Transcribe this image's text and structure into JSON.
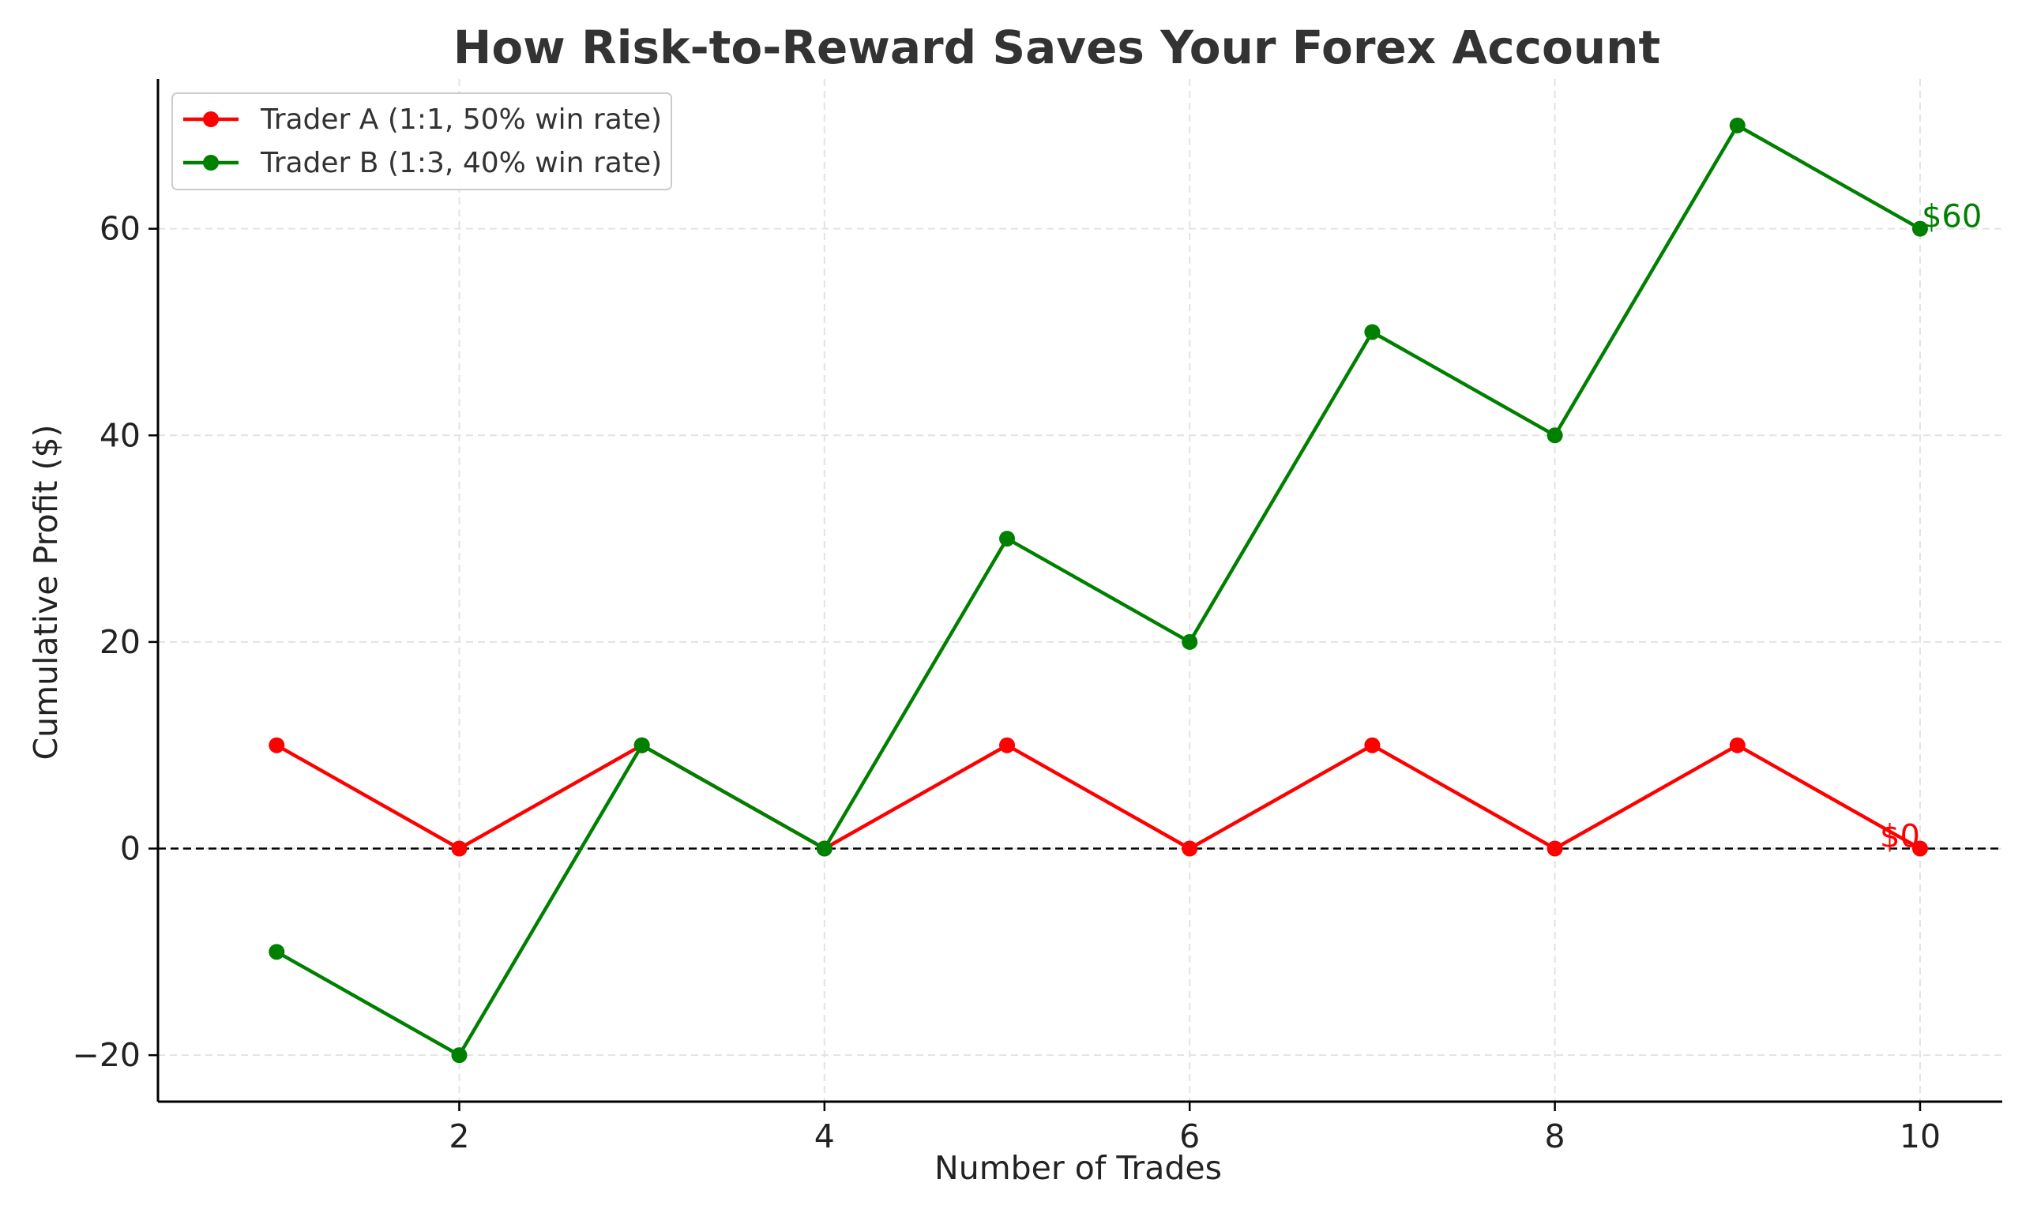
{
  "chart_data": {
    "type": "line",
    "title": "How Risk-to-Reward Saves Your Forex Account",
    "xlabel": "Number of Trades",
    "ylabel": "Cumulative Profit ($)",
    "x": [
      1,
      2,
      3,
      4,
      5,
      6,
      7,
      8,
      9,
      10
    ],
    "xlim": [
      0.35,
      10.45
    ],
    "ylim": [
      -24.5,
      74.5
    ],
    "xticks": [
      2,
      4,
      6,
      8,
      10
    ],
    "xtick_labels": [
      "2",
      "4",
      "6",
      "8",
      "10"
    ],
    "yticks": [
      -20,
      0,
      20,
      40,
      60
    ],
    "ytick_labels": [
      "−20",
      "0",
      "20",
      "40",
      "60"
    ],
    "grid": true,
    "reference_line": {
      "y": 0,
      "style": "dashed",
      "color": "#000000"
    },
    "legend_position": "top-left",
    "series": [
      {
        "name": "Trader A (1:1, 50% win rate)",
        "color": "#ff0000",
        "values": [
          10,
          0,
          10,
          0,
          10,
          0,
          10,
          0,
          10,
          0
        ],
        "end_label": "$0"
      },
      {
        "name": "Trader B (1:3, 40% win rate)",
        "color": "#008000",
        "values": [
          -10,
          -20,
          10,
          0,
          30,
          20,
          50,
          40,
          70,
          60
        ],
        "end_label": "$60"
      }
    ]
  }
}
